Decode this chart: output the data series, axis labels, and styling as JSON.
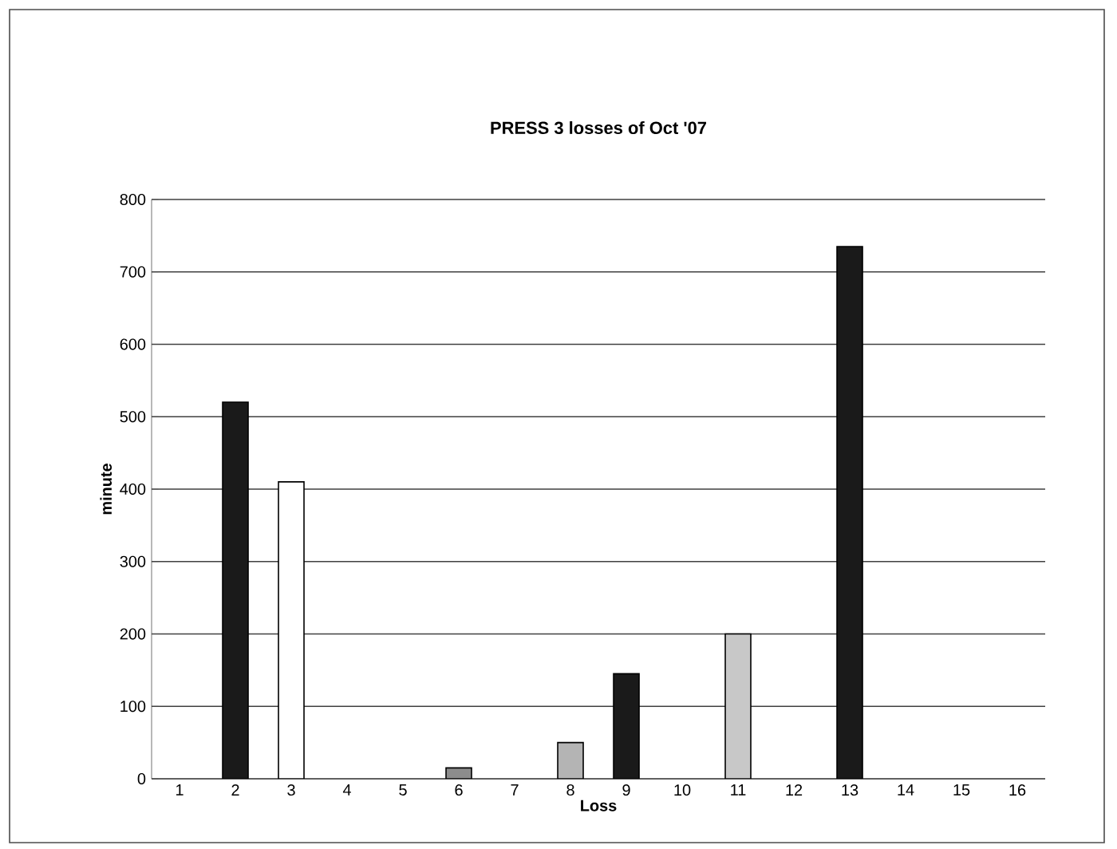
{
  "chart_data": {
    "type": "bar",
    "title": "PRESS 3 losses of Oct '07",
    "xlabel": "Loss",
    "ylabel": "minute",
    "categories": [
      "1",
      "2",
      "3",
      "4",
      "5",
      "6",
      "7",
      "8",
      "9",
      "10",
      "11",
      "12",
      "13",
      "14",
      "15",
      "16"
    ],
    "values": [
      null,
      520,
      410,
      null,
      null,
      15,
      null,
      50,
      145,
      null,
      200,
      null,
      735,
      null,
      null,
      null
    ],
    "colors": [
      "#1a1a1a",
      "#1a1a1a",
      "#ffffff",
      "#1a1a1a",
      "#1a1a1a",
      "#8c8c8c",
      "#1a1a1a",
      "#b4b4b4",
      "#1a1a1a",
      "#1a1a1a",
      "#c8c8c8",
      "#1a1a1a",
      "#1a1a1a",
      "#1a1a1a",
      "#1a1a1a",
      "#1a1a1a"
    ],
    "ylim": [
      0,
      800
    ],
    "yticks": [
      0,
      100,
      200,
      300,
      400,
      500,
      600,
      700,
      800
    ],
    "grid": "y"
  }
}
